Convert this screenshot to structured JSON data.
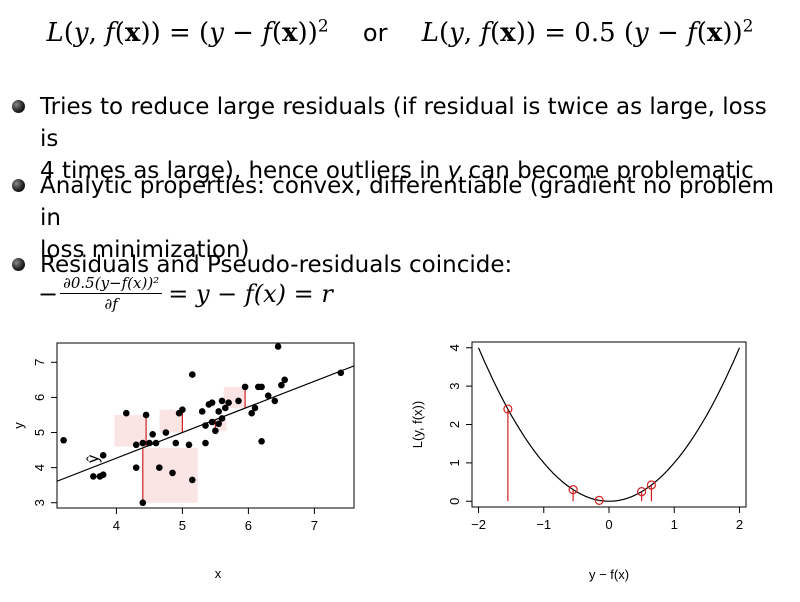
{
  "formula": {
    "loss_a": "L(y, f(x)) = (y − f(x))²",
    "or": "or",
    "loss_b": "L(y, f(x)) = 0.5 (y − f(x))²"
  },
  "bullets": [
    {
      "line1": "Tries to reduce large residuals (if residual is twice as large, loss is",
      "line2a": "4 times as large), hence outliers in ",
      "line2_var": "y",
      "line2b": " can become problematic"
    },
    {
      "line1": "Analytic properties: convex, differentiable (gradient no problem in",
      "line2": "loss minimization)"
    },
    {
      "line1": "Residuals and Pseudo-residuals coincide:"
    }
  ],
  "derivative": {
    "minus": "−",
    "numerator": "∂0.5(y−f(x))²",
    "denominator": "∂f",
    "rhs": "= y − f(x) = r"
  },
  "chart_data": [
    {
      "type": "scatter",
      "xlabel": "x",
      "ylabel": "y",
      "xlim": [
        3.1,
        7.6
      ],
      "ylim": [
        2.85,
        7.55
      ],
      "xticks": [
        "4",
        "5",
        "6",
        "7"
      ],
      "yticks": [
        "3",
        "4",
        "5",
        "6",
        "7"
      ],
      "yhat_label": "ŷ",
      "line": {
        "intercept": 1.35,
        "slope": 0.73
      },
      "points": [
        [
          3.2,
          4.78
        ],
        [
          3.65,
          3.75
        ],
        [
          3.75,
          3.75
        ],
        [
          3.8,
          3.8
        ],
        [
          3.8,
          4.35
        ],
        [
          4.15,
          5.55
        ],
        [
          4.3,
          4.65
        ],
        [
          4.3,
          4.0
        ],
        [
          4.4,
          4.7
        ],
        [
          4.4,
          3.0
        ],
        [
          4.45,
          5.5
        ],
        [
          4.5,
          4.7
        ],
        [
          4.55,
          4.95
        ],
        [
          4.6,
          4.7
        ],
        [
          4.65,
          4.0
        ],
        [
          4.75,
          5.0
        ],
        [
          4.85,
          3.85
        ],
        [
          4.9,
          4.7
        ],
        [
          4.95,
          5.55
        ],
        [
          5.0,
          5.65
        ],
        [
          5.1,
          4.65
        ],
        [
          5.15,
          3.65
        ],
        [
          5.15,
          6.65
        ],
        [
          5.3,
          5.6
        ],
        [
          5.35,
          4.7
        ],
        [
          5.35,
          5.2
        ],
        [
          5.4,
          5.8
        ],
        [
          5.45,
          5.85
        ],
        [
          5.45,
          5.3
        ],
        [
          5.5,
          5.05
        ],
        [
          5.55,
          5.6
        ],
        [
          5.55,
          5.25
        ],
        [
          5.6,
          5.4
        ],
        [
          5.6,
          5.9
        ],
        [
          5.65,
          5.7
        ],
        [
          5.7,
          5.85
        ],
        [
          5.85,
          5.9
        ],
        [
          5.95,
          6.3
        ],
        [
          6.05,
          5.55
        ],
        [
          6.1,
          5.7
        ],
        [
          6.15,
          6.3
        ],
        [
          6.2,
          6.3
        ],
        [
          6.2,
          4.75
        ],
        [
          6.3,
          6.05
        ],
        [
          6.4,
          5.9
        ],
        [
          6.45,
          7.45
        ],
        [
          6.5,
          6.35
        ],
        [
          6.55,
          6.5
        ],
        [
          7.4,
          6.7
        ]
      ],
      "highlighted": [
        [
          4.4,
          3.0
        ],
        [
          4.45,
          5.5
        ],
        [
          5.0,
          5.65
        ],
        [
          5.5,
          5.05
        ],
        [
          5.95,
          6.3
        ]
      ]
    },
    {
      "type": "line",
      "xlabel": "y − f(x)",
      "ylabel": "L(y, f(x))",
      "xlim": [
        -2.1,
        2.1
      ],
      "ylim": [
        -0.15,
        4.15
      ],
      "xticks": [
        "−2",
        "−1",
        "0",
        "1",
        "2"
      ],
      "yticks": [
        "0",
        "1",
        "2",
        "3",
        "4"
      ],
      "curve": "y = x^2",
      "highlighted_residuals": [
        -1.55,
        -0.55,
        -0.15,
        0.5,
        0.65
      ]
    }
  ]
}
